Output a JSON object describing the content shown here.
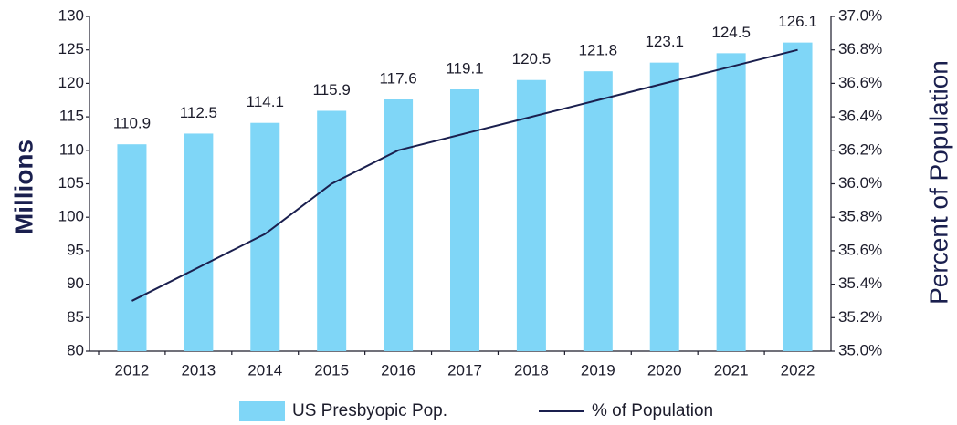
{
  "chart_data": {
    "type": "bar",
    "y_label": "Millions",
    "y2_label": "Percent of Population",
    "categories": [
      "2012",
      "2013",
      "2014",
      "2015",
      "2016",
      "2017",
      "2018",
      "2019",
      "2020",
      "2021",
      "2022"
    ],
    "series": [
      {
        "name": "US Presbyopic Pop.",
        "type": "bar",
        "color": "#7fd6f7",
        "values": [
          110.9,
          112.5,
          114.1,
          115.9,
          117.6,
          119.1,
          120.5,
          121.8,
          123.1,
          124.5,
          126.1
        ]
      },
      {
        "name": "% of Population",
        "type": "line",
        "axis": "y2",
        "color": "#1a1f4e",
        "values": [
          35.3,
          35.5,
          35.7,
          36.0,
          36.2,
          36.3,
          36.4,
          36.5,
          36.6,
          36.7,
          36.8
        ]
      }
    ],
    "ylim": [
      80,
      130
    ],
    "yticks": [
      80,
      85,
      90,
      95,
      100,
      105,
      110,
      115,
      120,
      125,
      130
    ],
    "y2lim": [
      35.0,
      37.0
    ],
    "y2ticks": [
      {
        "value": 35.0,
        "label": "35.0%"
      },
      {
        "value": 35.2,
        "label": "35.2%"
      },
      {
        "value": 35.4,
        "label": "35.4%"
      },
      {
        "value": 35.6,
        "label": "35.6%"
      },
      {
        "value": 35.8,
        "label": "35.8%"
      },
      {
        "value": 36.0,
        "label": "36.0%"
      },
      {
        "value": 36.2,
        "label": "36.2%"
      },
      {
        "value": 36.4,
        "label": "36.4%"
      },
      {
        "value": 36.6,
        "label": "36.6%"
      },
      {
        "value": 36.8,
        "label": "36.8%"
      },
      {
        "value": 37.0,
        "label": "37.0%"
      }
    ],
    "grid": false,
    "legend": "bottom"
  }
}
